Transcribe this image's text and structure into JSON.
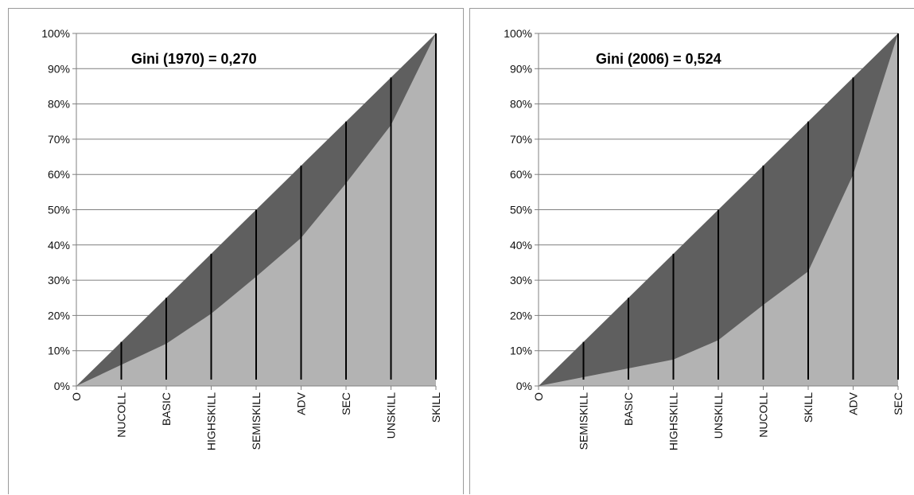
{
  "colors": {
    "equality_area": "#5f5f5f",
    "lorenz_area": "#b3b3b3",
    "gridline": "#7f7f7f",
    "axis": "#808080",
    "divider": "#000000"
  },
  "chart_data": [
    {
      "type": "area",
      "annotation": "Gini (1970) =  0,270",
      "categories": [
        "O",
        "NUCOLL",
        "BASIC",
        "HIGHSKILL",
        "SEMISKILL",
        "ADV",
        "SEC",
        "UNSKILL",
        "SKILL"
      ],
      "series": [
        {
          "values": [
            0,
            12.5,
            25,
            37.5,
            50,
            62.5,
            75,
            87.5,
            100
          ]
        },
        {
          "values": [
            0,
            6,
            12,
            20.5,
            31,
            42,
            57.5,
            74,
            100
          ]
        }
      ],
      "ylim": [
        0,
        100
      ],
      "yticks": [
        "0%",
        "10%",
        "20%",
        "30%",
        "40%",
        "50%",
        "60%",
        "70%",
        "80%",
        "90%",
        "100%"
      ],
      "grid": true
    },
    {
      "type": "area",
      "annotation": "Gini (2006) =  0,524",
      "categories": [
        "O",
        "SEMISKILL",
        "BASIC",
        "HIGHSKILL",
        "UNSKILL",
        "NUCOLL",
        "SKILL",
        "ADV",
        "SEC"
      ],
      "series": [
        {
          "values": [
            0,
            12.5,
            25,
            37.5,
            50,
            62.5,
            75,
            87.5,
            100
          ]
        },
        {
          "values": [
            0,
            2.5,
            5,
            7.5,
            13,
            23,
            32.5,
            60,
            100
          ]
        }
      ],
      "ylim": [
        0,
        100
      ],
      "yticks": [
        "0%",
        "10%",
        "20%",
        "30%",
        "40%",
        "50%",
        "60%",
        "70%",
        "80%",
        "90%",
        "100%"
      ],
      "grid": true
    }
  ]
}
